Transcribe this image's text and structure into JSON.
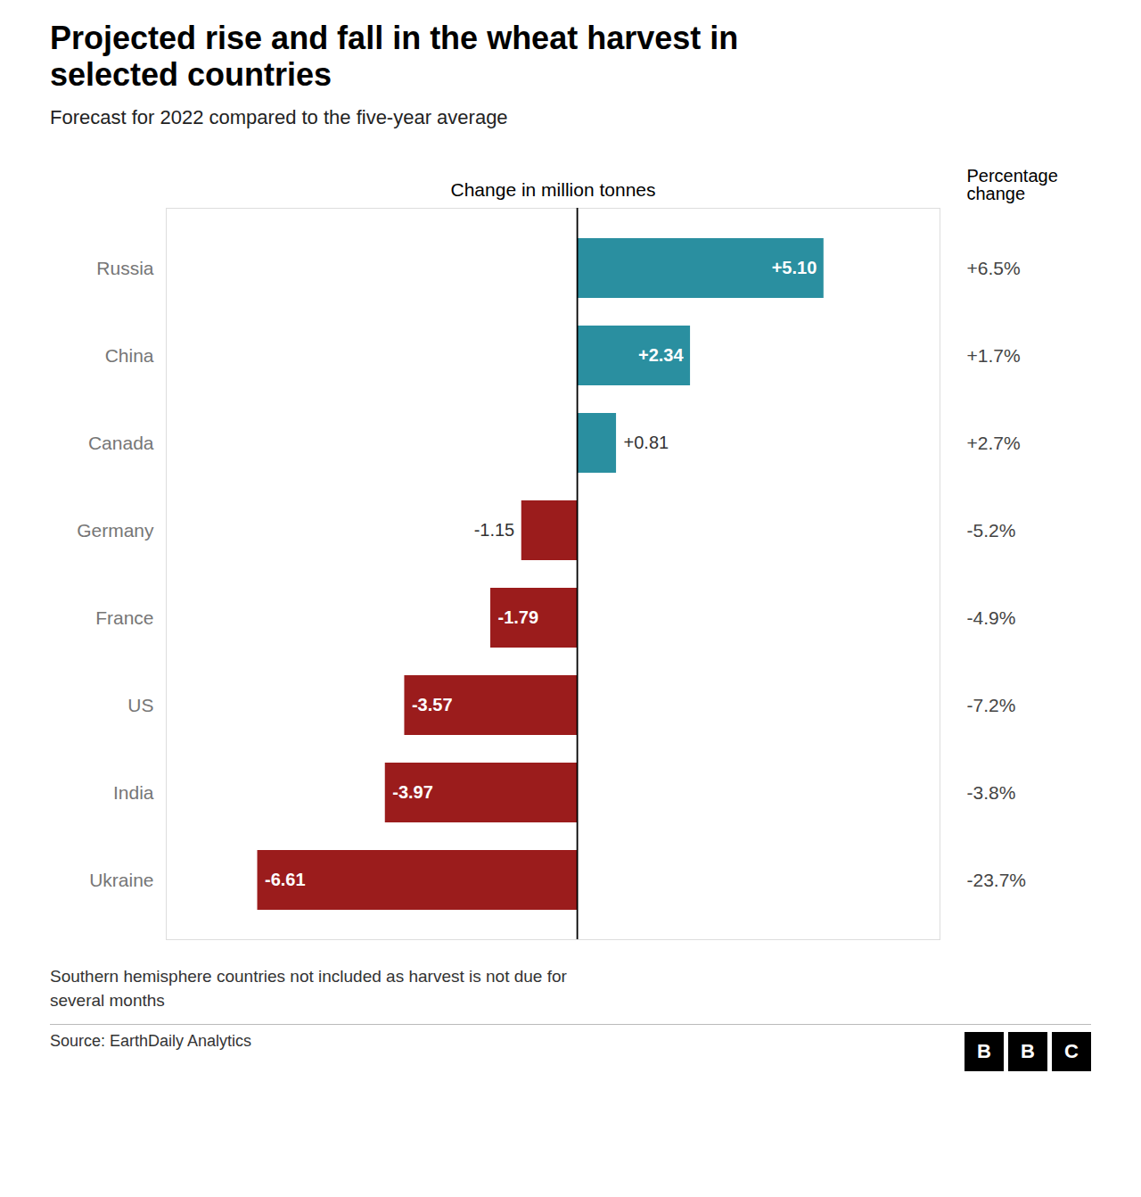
{
  "chart_data": {
    "type": "bar",
    "orientation": "horizontal",
    "title": "Projected rise and fall in the wheat harvest in\nselected countries",
    "subtitle": "Forecast for 2022 compared to the five-year average",
    "x_label": "Change in million tonnes",
    "categories": [
      "Russia",
      "China",
      "Canada",
      "Germany",
      "France",
      "US",
      "India",
      "Ukraine"
    ],
    "values": [
      5.1,
      2.34,
      0.81,
      -1.15,
      -1.79,
      -3.57,
      -3.97,
      -6.61
    ],
    "value_labels": [
      "+5.10",
      "+2.34",
      "+0.81",
      "-1.15",
      "-1.79",
      "-3.57",
      "-3.97",
      "-6.61"
    ],
    "data_labels": true,
    "colors": [
      "#2a8fa0",
      "#2a8fa0",
      "#2a8fa0",
      "#9b1c1c",
      "#9b1c1c",
      "#9b1c1c",
      "#9b1c1c",
      "#9b1c1c"
    ],
    "xlim": [
      -8.5,
      7.5
    ],
    "tick_labels": "y",
    "grid": false,
    "pct_label": "Percentage\nchange",
    "pct_changes": [
      "+6.5%",
      "+1.7%",
      "+2.7%",
      "-5.2%",
      "-4.9%",
      "-7.2%",
      "-3.8%",
      "-23.7%"
    ],
    "annotations": [
      "Southern hemisphere countries not included as harvest is not due for\nseveral months",
      "Source: EarthDaily Analytics"
    ],
    "logo": "BBC"
  }
}
